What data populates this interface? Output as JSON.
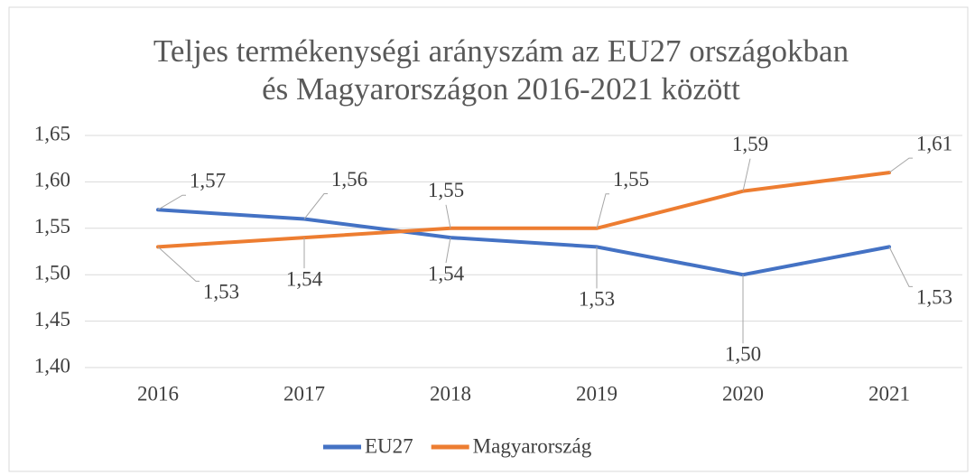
{
  "chart_data": {
    "type": "line",
    "title": [
      "Teljes termékenységi arányszám az EU27 országokban",
      "és Magyarországon 2016-2021 között"
    ],
    "categories": [
      "2016",
      "2017",
      "2018",
      "2019",
      "2020",
      "2021"
    ],
    "series": [
      {
        "name": "EU27",
        "color": "#4472c4",
        "values": [
          1.57,
          1.56,
          1.54,
          1.53,
          1.5,
          1.53
        ],
        "value_labels": [
          "1,57",
          "1,56",
          "1,54",
          "1,53",
          "1,50",
          "1,53"
        ]
      },
      {
        "name": "Magyarország",
        "color": "#ed7d31",
        "values": [
          1.53,
          1.54,
          1.55,
          1.55,
          1.59,
          1.61
        ],
        "value_labels": [
          "1,53",
          "1,54",
          "1,55",
          "1,55",
          "1,59",
          "1,61"
        ]
      }
    ],
    "ylim": [
      1.4,
      1.65
    ],
    "yticks": [
      {
        "value": 1.4,
        "label": "1,40"
      },
      {
        "value": 1.45,
        "label": "1,45"
      },
      {
        "value": 1.5,
        "label": "1,50"
      },
      {
        "value": 1.55,
        "label": "1,55"
      },
      {
        "value": 1.6,
        "label": "1,60"
      },
      {
        "value": 1.65,
        "label": "1,65"
      }
    ],
    "grid": true,
    "legend": "bottom"
  }
}
